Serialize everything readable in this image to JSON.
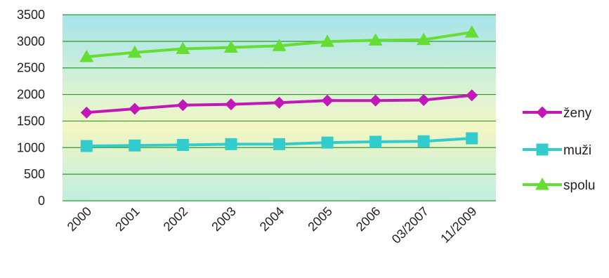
{
  "chart_data": {
    "type": "line",
    "title": "",
    "xlabel": "",
    "ylabel": "",
    "categories": [
      "2000",
      "2001",
      "2002",
      "2003",
      "2004",
      "2005",
      "2006",
      "03/2007",
      "11/2009"
    ],
    "ylim": [
      0,
      3500
    ],
    "yticks": [
      "0",
      "500",
      "1000",
      "1500",
      "2000",
      "2500",
      "3000",
      "3500"
    ],
    "grid": true,
    "legend_position": "right",
    "series": [
      {
        "name": "ženy",
        "color": "#c218b8",
        "marker": "diamond",
        "values": [
          1660,
          1730,
          1800,
          1815,
          1845,
          1885,
          1885,
          1895,
          1985
        ]
      },
      {
        "name": "muži",
        "color": "#33cccc",
        "marker": "square",
        "values": [
          1030,
          1040,
          1050,
          1065,
          1065,
          1095,
          1110,
          1120,
          1175
        ]
      },
      {
        "name": "spolu",
        "color": "#66dd33",
        "marker": "triangle",
        "values": [
          2710,
          2790,
          2860,
          2885,
          2915,
          2995,
          3020,
          3030,
          3170
        ]
      }
    ]
  }
}
